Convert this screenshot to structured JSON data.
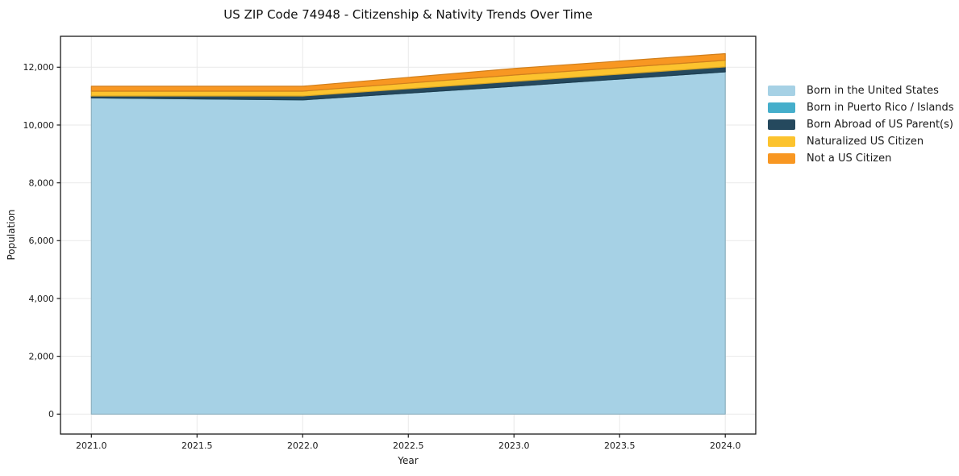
{
  "chart_data": {
    "type": "area",
    "stacked": true,
    "title": "US ZIP Code 74948 - Citizenship & Nativity Trends Over Time",
    "xlabel": "Year",
    "ylabel": "Population",
    "x": [
      2021,
      2022,
      2023,
      2024
    ],
    "series": [
      {
        "name": "Born in the United States",
        "color": "#a6d1e5",
        "values": [
          10940,
          10870,
          11340,
          11840
        ]
      },
      {
        "name": "Born in Puerto Rico / Islands",
        "color": "#45aecb",
        "values": [
          0,
          0,
          0,
          0
        ]
      },
      {
        "name": "Born Abroad of US Parent(s)",
        "color": "#25495e",
        "values": [
          65,
          135,
          165,
          170
        ]
      },
      {
        "name": "Naturalized US Citizen",
        "color": "#fcc32e",
        "values": [
          165,
          165,
          225,
          230
        ]
      },
      {
        "name": "Not a US Citizen",
        "color": "#f89722",
        "values": [
          170,
          170,
          225,
          230
        ]
      }
    ],
    "x_ticks": {
      "values": [
        2021.0,
        2021.5,
        2022.0,
        2022.5,
        2023.0,
        2023.5,
        2024.0
      ],
      "labels": [
        "2021.0",
        "2021.5",
        "2022.0",
        "2022.5",
        "2023.0",
        "2023.5",
        "2024.0"
      ]
    },
    "y_ticks": {
      "values": [
        0,
        2000,
        4000,
        6000,
        8000,
        10000,
        12000
      ],
      "labels": [
        "0",
        "2,000",
        "4,000",
        "6,000",
        "8,000",
        "10,000",
        "12,000"
      ]
    },
    "xlim": [
      2020.85,
      2024.15
    ],
    "ylim": [
      -690,
      13065
    ],
    "grid": true,
    "legend_position": "right-outside",
    "colors": {
      "grid": "#e9e9e9",
      "spine": "#1a1a1a",
      "text": "#1a1a1a",
      "background": "#ffffff"
    }
  }
}
